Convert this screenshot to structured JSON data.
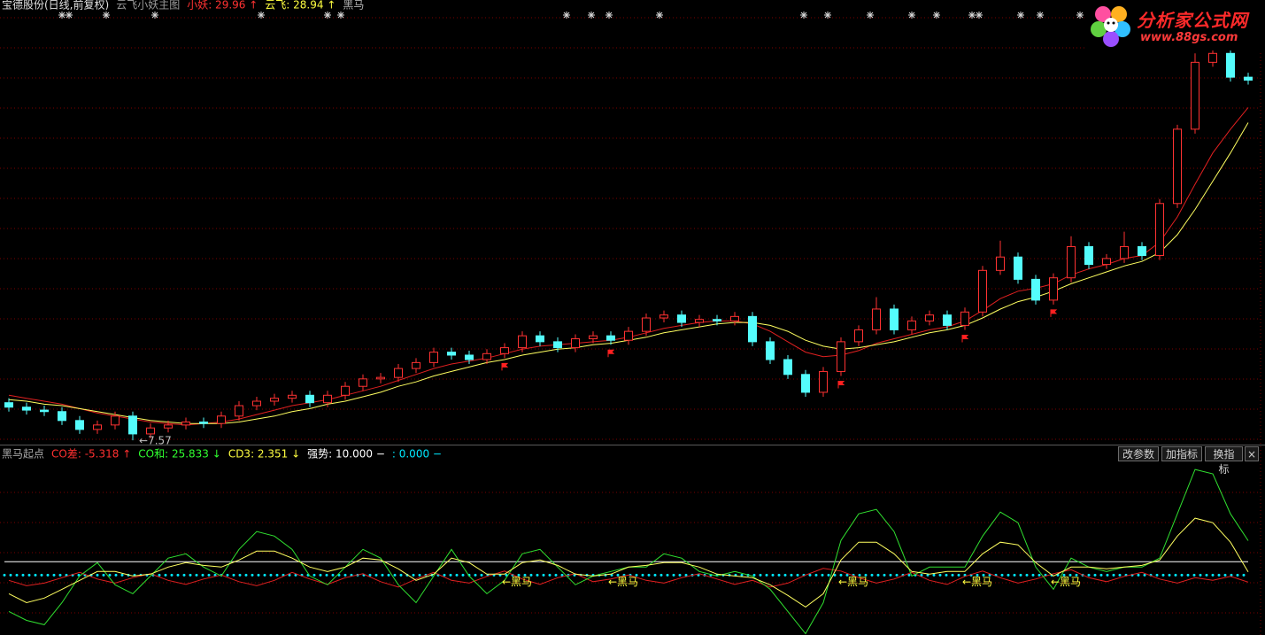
{
  "chart_data": [
    {
      "type": "candlestick",
      "title": "宝德股份(日线,前复权)",
      "indicator": "云飞小妖主图",
      "readout": [
        {
          "text": "小妖: 29.96 ↑",
          "color": "#ff3232"
        },
        {
          "text": "云飞: 28.94 ↑",
          "color": "#ffff40"
        },
        {
          "text": "黑马",
          "color": "#b0b0b0"
        }
      ],
      "up_color": "#ff3232",
      "down_color": "#54fcfc",
      "open": [
        10.1,
        9.8,
        9.6,
        9.5,
        8.9,
        8.3,
        8.6,
        9.2,
        8.0,
        8.4,
        8.6,
        8.8,
        8.7,
        9.2,
        9.9,
        10.2,
        10.4,
        10.6,
        10.1,
        10.6,
        11.2,
        11.7,
        11.8,
        12.4,
        12.8,
        13.5,
        13.3,
        13.0,
        13.4,
        13.8,
        14.6,
        14.2,
        13.8,
        14.4,
        14.6,
        14.3,
        14.9,
        15.8,
        16.0,
        15.5,
        15.7,
        15.6,
        15.9,
        14.2,
        13.0,
        12.0,
        10.8,
        12.2,
        14.2,
        15.0,
        16.4,
        15.0,
        15.6,
        16.0,
        15.3,
        16.2,
        19.0,
        19.9,
        18.4,
        17.0,
        18.5,
        20.6,
        19.4,
        19.8,
        20.6,
        20.0,
        23.5,
        28.5,
        33.0,
        33.6,
        32.0
      ],
      "high": [
        10.4,
        10.1,
        9.9,
        9.8,
        9.2,
        8.9,
        9.5,
        9.5,
        8.7,
        8.9,
        9.1,
        9.1,
        9.5,
        10.2,
        10.5,
        10.7,
        10.9,
        10.9,
        10.9,
        11.5,
        12.0,
        12.1,
        12.7,
        13.1,
        13.8,
        13.8,
        13.6,
        13.7,
        14.1,
        14.9,
        14.9,
        14.5,
        14.7,
        14.9,
        14.9,
        15.2,
        16.1,
        16.3,
        16.3,
        16.0,
        16.0,
        16.2,
        16.2,
        14.5,
        13.3,
        12.3,
        12.5,
        14.5,
        15.3,
        17.2,
        16.7,
        15.9,
        16.3,
        16.3,
        16.5,
        19.3,
        21.0,
        20.2,
        18.7,
        18.8,
        21.3,
        20.9,
        20.1,
        21.6,
        20.9,
        23.8,
        28.8,
        33.6,
        34.5,
        33.9,
        32.3
      ],
      "low": [
        9.5,
        9.3,
        9.2,
        8.6,
        8.0,
        8.0,
        8.3,
        7.57,
        7.7,
        8.1,
        8.3,
        8.4,
        8.4,
        8.9,
        9.6,
        9.9,
        10.1,
        9.8,
        9.8,
        10.3,
        10.9,
        11.4,
        11.5,
        12.1,
        12.5,
        13.0,
        12.7,
        12.7,
        13.1,
        13.5,
        13.9,
        13.5,
        13.5,
        14.1,
        14.0,
        14.0,
        14.6,
        15.5,
        15.2,
        15.2,
        15.3,
        15.3,
        13.9,
        12.7,
        11.7,
        10.5,
        10.5,
        11.9,
        13.9,
        14.7,
        14.7,
        14.7,
        15.3,
        15.0,
        15.0,
        15.9,
        18.7,
        18.1,
        16.7,
        16.7,
        18.2,
        19.1,
        19.1,
        19.5,
        19.7,
        19.7,
        23.2,
        28.2,
        32.7,
        31.7,
        31.5
      ],
      "close": [
        9.8,
        9.6,
        9.5,
        8.9,
        8.3,
        8.6,
        9.2,
        8.0,
        8.4,
        8.6,
        8.8,
        8.7,
        9.2,
        9.9,
        10.2,
        10.4,
        10.6,
        10.1,
        10.6,
        11.2,
        11.7,
        11.8,
        12.4,
        12.8,
        13.5,
        13.3,
        13.0,
        13.4,
        13.8,
        14.6,
        14.2,
        13.8,
        14.4,
        14.6,
        14.3,
        14.9,
        15.8,
        16.0,
        15.5,
        15.7,
        15.6,
        15.9,
        14.2,
        13.0,
        12.0,
        10.8,
        12.2,
        14.2,
        15.0,
        16.4,
        15.0,
        15.6,
        16.0,
        15.3,
        16.2,
        19.0,
        19.9,
        18.4,
        17.0,
        18.5,
        20.6,
        19.4,
        19.8,
        20.6,
        20.0,
        23.5,
        28.5,
        33.0,
        33.6,
        32.0,
        31.8
      ],
      "series": [
        {
          "color": "#e02020",
          "values": [
            10.6,
            10.4,
            10.2,
            10.0,
            9.7,
            9.4,
            9.2,
            9.0,
            8.8,
            8.7,
            8.6,
            8.7,
            8.8,
            9.0,
            9.3,
            9.6,
            9.9,
            10.1,
            10.3,
            10.6,
            10.9,
            11.2,
            11.6,
            12.0,
            12.4,
            12.7,
            12.9,
            13.1,
            13.4,
            13.7,
            13.9,
            14.0,
            14.1,
            14.2,
            14.3,
            14.5,
            14.8,
            15.1,
            15.3,
            15.5,
            15.6,
            15.6,
            15.4,
            14.9,
            14.2,
            13.5,
            13.2,
            13.3,
            13.6,
            14.1,
            14.4,
            14.7,
            15.0,
            15.2,
            15.6,
            16.3,
            17.1,
            17.6,
            17.8,
            18.1,
            18.7,
            19.1,
            19.4,
            19.8,
            20.0,
            20.9,
            22.6,
            24.8,
            26.9,
            28.5,
            29.96
          ]
        },
        {
          "color": "#ffff60",
          "values": [
            10.3,
            10.2,
            10.0,
            9.9,
            9.7,
            9.5,
            9.3,
            9.1,
            8.9,
            8.8,
            8.7,
            8.7,
            8.7,
            8.8,
            9.0,
            9.2,
            9.5,
            9.7,
            10.0,
            10.2,
            10.5,
            10.8,
            11.2,
            11.5,
            11.9,
            12.2,
            12.5,
            12.8,
            13.0,
            13.3,
            13.5,
            13.7,
            13.8,
            14.0,
            14.1,
            14.3,
            14.5,
            14.8,
            15.0,
            15.2,
            15.4,
            15.5,
            15.5,
            15.3,
            14.9,
            14.3,
            13.9,
            13.7,
            13.8,
            14.0,
            14.2,
            14.5,
            14.8,
            15.0,
            15.3,
            15.8,
            16.4,
            16.9,
            17.2,
            17.6,
            18.1,
            18.5,
            18.9,
            19.3,
            19.6,
            20.2,
            21.4,
            23.1,
            25.0,
            26.9,
            28.94
          ]
        }
      ],
      "low_annotation": "←7.57",
      "ylim": [
        7.4,
        36
      ]
    },
    {
      "type": "line",
      "title": "黑马起点",
      "readout": [
        {
          "text": "CO差: -5.318 ↑",
          "color": "#ff3030"
        },
        {
          "text": "CO和: 25.833 ↓",
          "color": "#30ff30"
        },
        {
          "text": "CD3: 2.351 ↓",
          "color": "#ffff40"
        },
        {
          "text": "强势: 10.000 −",
          "color": "#ffffff"
        },
        {
          "text": ": 0.000 −",
          "color": "#00e8ff"
        }
      ],
      "series": [
        {
          "color": "#e02020",
          "values": [
            -4,
            -8,
            -6,
            -2,
            2,
            -3,
            -6,
            -2,
            1,
            -4,
            -7,
            -3,
            0,
            -5,
            -8,
            -4,
            2,
            -3,
            -7,
            -2,
            1,
            -5,
            -9,
            -3,
            2,
            -4,
            -6,
            -1,
            3,
            -3,
            -7,
            -2,
            1,
            -5,
            -3,
            0,
            -4,
            -6,
            -2,
            1,
            -3,
            -7,
            -4,
            -9,
            -6,
            0,
            5,
            3,
            -2,
            -6,
            -3,
            2,
            -4,
            -7,
            -1,
            3,
            -2,
            -6,
            -3,
            1,
            4,
            -2,
            -5,
            -1,
            2,
            -3,
            -6,
            -2,
            -4,
            -1,
            -5.318
          ]
        },
        {
          "color": "#30e030",
          "values": [
            -27.3,
            -34,
            -37.3,
            -20.7,
            -0.7,
            9.3,
            -7.3,
            -14,
            -0.7,
            12.7,
            16,
            6,
            -0.7,
            19.3,
            32.7,
            29.3,
            19.3,
            -0.7,
            -7.3,
            6,
            19.3,
            12.7,
            -7.3,
            -20.7,
            -0.7,
            19.3,
            -0.7,
            -14,
            -4,
            16,
            19.3,
            6,
            -7.3,
            -0.7,
            2.7,
            6,
            6,
            16,
            12.7,
            2.7,
            -0.7,
            2.7,
            -0.7,
            -10.7,
            -27.3,
            -44,
            -20.7,
            26,
            46,
            49.3,
            32.7,
            -0.7,
            6,
            6,
            6,
            29.3,
            47.3,
            39.3,
            6,
            -10.7,
            12.7,
            6,
            2.7,
            6,
            6,
            12.7,
            46,
            79.3,
            76,
            46,
            25.833
          ]
        },
        {
          "color": "#ffff60",
          "values": [
            -14,
            -20.7,
            -17.3,
            -10.7,
            -4,
            2.7,
            2.7,
            -0.7,
            0.7,
            6,
            9.3,
            7.3,
            6,
            11.3,
            18,
            18,
            12.7,
            6,
            2.7,
            6,
            12.7,
            11.3,
            4.7,
            -4,
            0.7,
            12.7,
            9.3,
            0.7,
            0.7,
            9.3,
            11.3,
            7.3,
            0.7,
            -0.7,
            0.7,
            6,
            7.3,
            9.3,
            9.3,
            6,
            0.7,
            -0.7,
            -2,
            -7.3,
            -15.3,
            -24,
            -14,
            11.3,
            24.7,
            24.7,
            16,
            2.7,
            0.7,
            2.7,
            2.7,
            16,
            24.7,
            22.7,
            9.3,
            -0.7,
            6,
            6,
            4.7,
            6,
            7.3,
            11.3,
            29.3,
            42.7,
            39.3,
            24.7,
            2.351
          ]
        }
      ],
      "hlines": [
        {
          "value": 10,
          "color": "#ffffff",
          "style": "solid"
        },
        {
          "value": 0,
          "color": "#00e8ff",
          "style": "dotted"
        }
      ],
      "annotations": [
        null,
        null,
        null,
        null,
        null,
        null,
        null,
        null,
        null,
        null,
        null,
        null,
        null,
        null,
        null,
        null,
        null,
        null,
        null,
        null,
        null,
        null,
        null,
        null,
        null,
        null,
        null,
        null,
        "←黑马",
        null,
        null,
        null,
        null,
        null,
        "←黑马",
        null,
        null,
        null,
        null,
        null,
        null,
        null,
        null,
        null,
        null,
        null,
        null,
        "←黑马",
        null,
        null,
        null,
        null,
        null,
        null,
        "←黑马",
        null,
        null,
        null,
        null,
        "←黑马",
        null,
        null,
        null,
        null,
        null,
        null,
        null,
        null,
        null,
        null,
        null
      ],
      "annotation_color": "#ffff40",
      "ylim": [
        -45,
        86
      ]
    }
  ],
  "ui": {
    "buttons": [
      "改参数",
      "加指标",
      "换指标",
      "×"
    ],
    "logo": {
      "name": "分析家公式网",
      "url": "www.88gs.com"
    }
  }
}
